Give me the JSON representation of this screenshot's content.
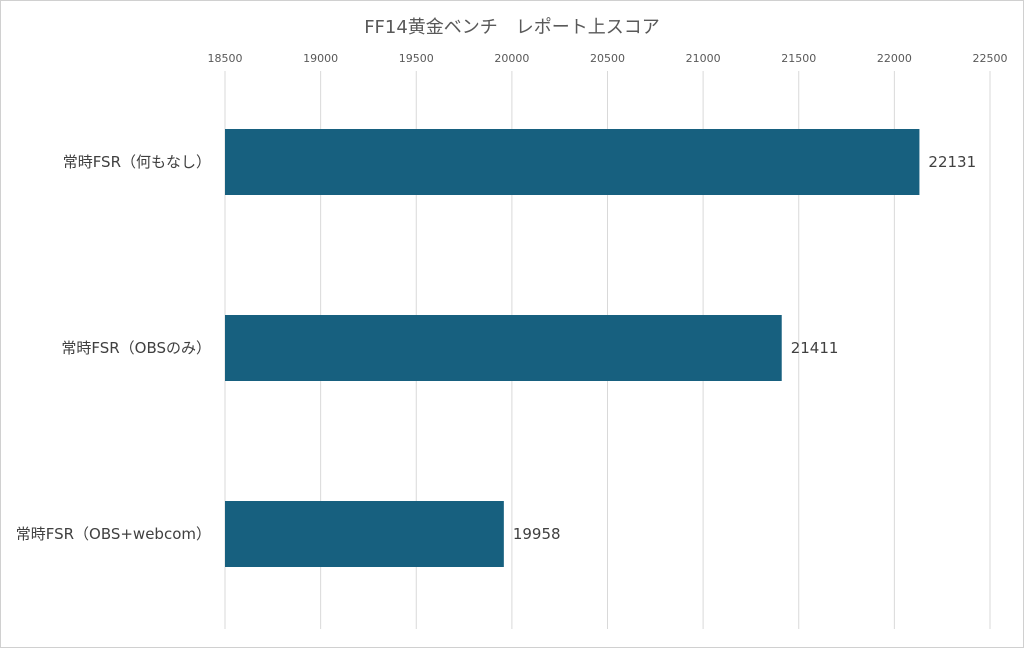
{
  "chart_data": {
    "type": "bar",
    "orientation": "horizontal",
    "title": "FF14黄金ベンチ　レポート上スコア",
    "categories": [
      "常時FSR（何もなし）",
      "常時FSR（OBSのみ）",
      "常時FSR（OBS+webcom）"
    ],
    "values": [
      22131,
      21411,
      19958
    ],
    "xlim": [
      18500,
      22500
    ],
    "x_ticks": [
      18500,
      19000,
      19500,
      20000,
      20500,
      21000,
      21500,
      22000,
      22500
    ],
    "x_axis_position": "top",
    "grid": true,
    "legend": "none",
    "bar_color": "#17607F"
  }
}
